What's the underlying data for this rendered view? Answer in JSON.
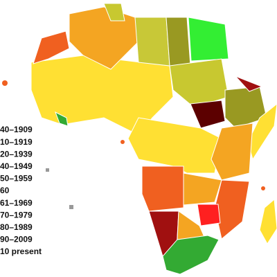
{
  "legend": {
    "items": [
      "40–1909",
      "10–1919",
      "20–1939",
      "40–1949",
      "50–1959",
      "60",
      "61–1969",
      "70–1979",
      "80–1989",
      "90–2009",
      "10 present"
    ]
  }
}
